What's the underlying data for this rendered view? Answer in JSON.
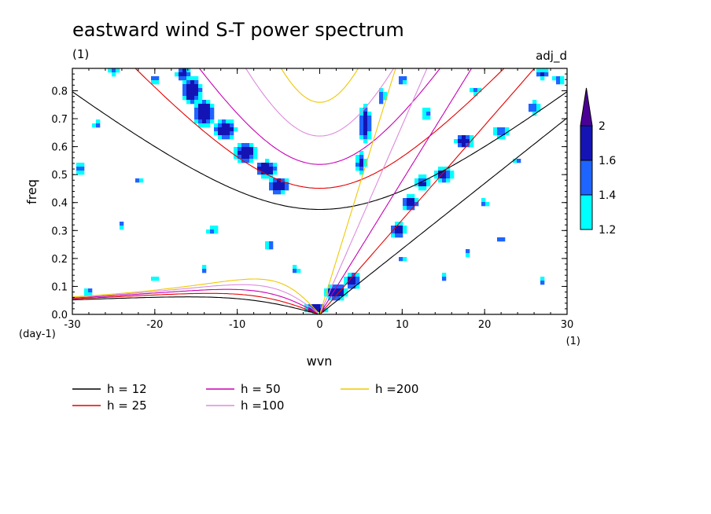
{
  "chart_data": {
    "type": "heatmap",
    "title": "eastward wind S-T power spectrum",
    "subtitle_left": "(1)",
    "subtitle_right": "adj_d",
    "xlabel": "wvn",
    "ylabel": "freq",
    "x_unit_label": "(1)",
    "y_unit_label": "(day-1)",
    "xlim": [
      -30,
      30
    ],
    "ylim": [
      0,
      0.88
    ],
    "x_ticks": [
      -30,
      -20,
      -10,
      0,
      10,
      20,
      30
    ],
    "x_tick_labels": [
      "-30",
      "-20",
      "-10",
      "0",
      "10",
      "20",
      "30"
    ],
    "y_ticks": [
      0,
      0.1,
      0.2,
      0.3,
      0.4,
      0.5,
      0.6,
      0.7,
      0.8
    ],
    "y_tick_labels": [
      "0.0",
      "0.1",
      "0.2",
      "0.3",
      "0.4",
      "0.5",
      "0.6",
      "0.7",
      "0.8"
    ],
    "colorbar": {
      "levels": [
        1.2,
        1.4,
        1.6,
        2
      ],
      "labels": [
        "1.2",
        "1.4",
        "1.6",
        "2"
      ],
      "colors": [
        "#00ffff",
        "#1e64ff",
        "#1414b4",
        "#4b0096"
      ],
      "extend": "max"
    },
    "dispersion_curves": [
      {
        "name": "h = 12",
        "h": 12,
        "color": "#000000"
      },
      {
        "name": "h = 25",
        "h": 25,
        "color": "#e60000"
      },
      {
        "name": "h = 50",
        "h": 50,
        "color": "#c800b4"
      },
      {
        "name": "h =100",
        "h": 100,
        "color": "#dc8cdc"
      },
      {
        "name": "h =200",
        "h": 200,
        "color": "#f0c800"
      }
    ],
    "power_blobs": [
      {
        "x": -15.5,
        "y": 0.8,
        "sx": 1.2,
        "sy": 0.05,
        "v": 2.0
      },
      {
        "x": -14,
        "y": 0.72,
        "sx": 1.3,
        "sy": 0.05,
        "v": 2.0
      },
      {
        "x": -11.5,
        "y": 0.66,
        "sx": 1.4,
        "sy": 0.04,
        "v": 1.9
      },
      {
        "x": -9,
        "y": 0.58,
        "sx": 1.4,
        "sy": 0.04,
        "v": 1.9
      },
      {
        "x": -6.5,
        "y": 0.52,
        "sx": 1.3,
        "sy": 0.03,
        "v": 2.0
      },
      {
        "x": -5,
        "y": 0.46,
        "sx": 1.3,
        "sy": 0.03,
        "v": 2.0
      },
      {
        "x": -16.5,
        "y": 0.86,
        "sx": 1.0,
        "sy": 0.03,
        "v": 1.8
      },
      {
        "x": 5.5,
        "y": 0.68,
        "sx": 0.8,
        "sy": 0.08,
        "v": 1.8
      },
      {
        "x": 5,
        "y": 0.54,
        "sx": 0.7,
        "sy": 0.05,
        "v": 1.7
      },
      {
        "x": 7.5,
        "y": 0.78,
        "sx": 0.7,
        "sy": 0.04,
        "v": 1.6
      },
      {
        "x": 2,
        "y": 0.08,
        "sx": 1.3,
        "sy": 0.03,
        "v": 2.0
      },
      {
        "x": 4,
        "y": 0.12,
        "sx": 1.0,
        "sy": 0.03,
        "v": 1.9
      },
      {
        "x": -0.5,
        "y": 0.02,
        "sx": 1.3,
        "sy": 0.02,
        "v": 2.0
      },
      {
        "x": 9.5,
        "y": 0.3,
        "sx": 1.0,
        "sy": 0.03,
        "v": 1.9
      },
      {
        "x": 11,
        "y": 0.4,
        "sx": 1.1,
        "sy": 0.03,
        "v": 1.8
      },
      {
        "x": 12.5,
        "y": 0.47,
        "sx": 1.0,
        "sy": 0.03,
        "v": 1.7
      },
      {
        "x": 15,
        "y": 0.5,
        "sx": 1.2,
        "sy": 0.03,
        "v": 1.8
      },
      {
        "x": 17.5,
        "y": 0.62,
        "sx": 1.2,
        "sy": 0.03,
        "v": 1.8
      },
      {
        "x": 22,
        "y": 0.65,
        "sx": 1.2,
        "sy": 0.03,
        "v": 1.6
      },
      {
        "x": 26,
        "y": 0.74,
        "sx": 1.0,
        "sy": 0.03,
        "v": 1.6
      },
      {
        "x": 27,
        "y": 0.86,
        "sx": 1.0,
        "sy": 0.02,
        "v": 1.7
      },
      {
        "x": 29,
        "y": 0.84,
        "sx": 0.8,
        "sy": 0.02,
        "v": 1.6
      },
      {
        "x": 10,
        "y": 0.84,
        "sx": 0.8,
        "sy": 0.02,
        "v": 1.6
      },
      {
        "x": 13,
        "y": 0.72,
        "sx": 0.8,
        "sy": 0.03,
        "v": 1.5
      },
      {
        "x": 19,
        "y": 0.8,
        "sx": 1.0,
        "sy": 0.02,
        "v": 1.5
      },
      {
        "x": -20,
        "y": 0.84,
        "sx": 0.7,
        "sy": 0.02,
        "v": 1.6
      },
      {
        "x": -25,
        "y": 0.87,
        "sx": 0.8,
        "sy": 0.02,
        "v": 1.5
      },
      {
        "x": -29,
        "y": 0.52,
        "sx": 0.9,
        "sy": 0.03,
        "v": 1.5
      },
      {
        "x": -28,
        "y": 0.08,
        "sx": 0.7,
        "sy": 0.02,
        "v": 1.5
      },
      {
        "x": -22,
        "y": 0.48,
        "sx": 0.7,
        "sy": 0.02,
        "v": 1.5
      },
      {
        "x": -27,
        "y": 0.68,
        "sx": 0.6,
        "sy": 0.02,
        "v": 1.5
      },
      {
        "x": -13,
        "y": 0.3,
        "sx": 0.8,
        "sy": 0.02,
        "v": 1.6
      },
      {
        "x": -14,
        "y": 0.16,
        "sx": 0.6,
        "sy": 0.02,
        "v": 1.5
      },
      {
        "x": -6,
        "y": 0.25,
        "sx": 0.7,
        "sy": 0.02,
        "v": 1.6
      },
      {
        "x": -3,
        "y": 0.16,
        "sx": 0.7,
        "sy": 0.02,
        "v": 1.5
      },
      {
        "x": -20,
        "y": 0.13,
        "sx": 0.6,
        "sy": 0.02,
        "v": 1.5
      },
      {
        "x": 22,
        "y": 0.27,
        "sx": 0.7,
        "sy": 0.02,
        "v": 1.5
      },
      {
        "x": 18,
        "y": 0.22,
        "sx": 0.6,
        "sy": 0.02,
        "v": 1.5
      },
      {
        "x": 27,
        "y": 0.12,
        "sx": 0.6,
        "sy": 0.02,
        "v": 1.5
      },
      {
        "x": 20,
        "y": 0.4,
        "sx": 0.6,
        "sy": 0.02,
        "v": 1.5
      },
      {
        "x": 24,
        "y": 0.55,
        "sx": 0.7,
        "sy": 0.02,
        "v": 1.5
      },
      {
        "x": 10,
        "y": 0.2,
        "sx": 0.6,
        "sy": 0.02,
        "v": 1.5
      },
      {
        "x": -24,
        "y": 0.32,
        "sx": 0.6,
        "sy": 0.02,
        "v": 1.5
      },
      {
        "x": 15,
        "y": 0.13,
        "sx": 0.6,
        "sy": 0.02,
        "v": 1.5
      }
    ]
  },
  "legend": {
    "entries": [
      {
        "label": "h = 12",
        "color": "#000000"
      },
      {
        "label": "h = 25",
        "color": "#e60000"
      },
      {
        "label": "h = 50",
        "color": "#c800b4"
      },
      {
        "label": "h =100",
        "color": "#dc8cdc"
      },
      {
        "label": "h =200",
        "color": "#f0c800"
      }
    ]
  }
}
